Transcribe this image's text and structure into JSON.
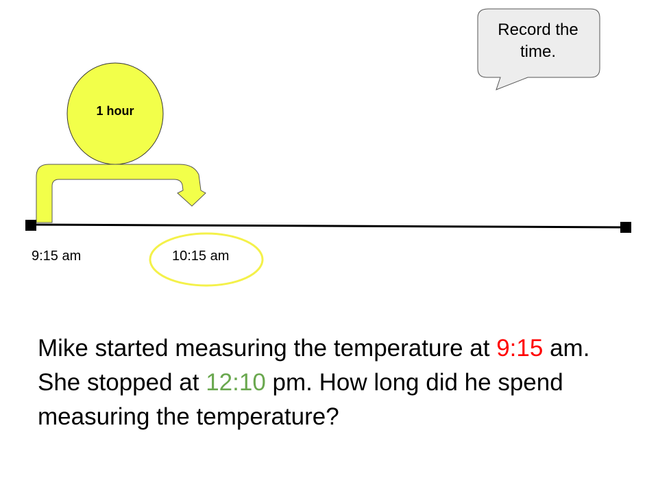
{
  "colors": {
    "highlight_yellow": "#f2ff4a",
    "ellipse_yellow": "#f4f14a",
    "start_time_color": "#ff0000",
    "end_time_color": "#6aa84f",
    "callout_fill": "#ededed"
  },
  "callout": {
    "text": "Record the time."
  },
  "jump": {
    "label": "1 hour"
  },
  "timeline": {
    "start_label": "9:15 am",
    "next_label": "10:15 am"
  },
  "problem": {
    "part1": "Mike started measuring the temperature at ",
    "start_time": "9:15",
    "part2": " am. She stopped at ",
    "end_time": "12:10",
    "part3": " pm. How long did he spend measuring the temperature?"
  }
}
